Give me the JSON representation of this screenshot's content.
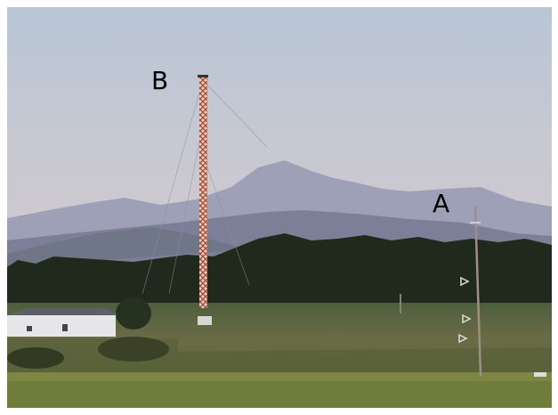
{
  "labels": [
    "B",
    "A"
  ]
}
